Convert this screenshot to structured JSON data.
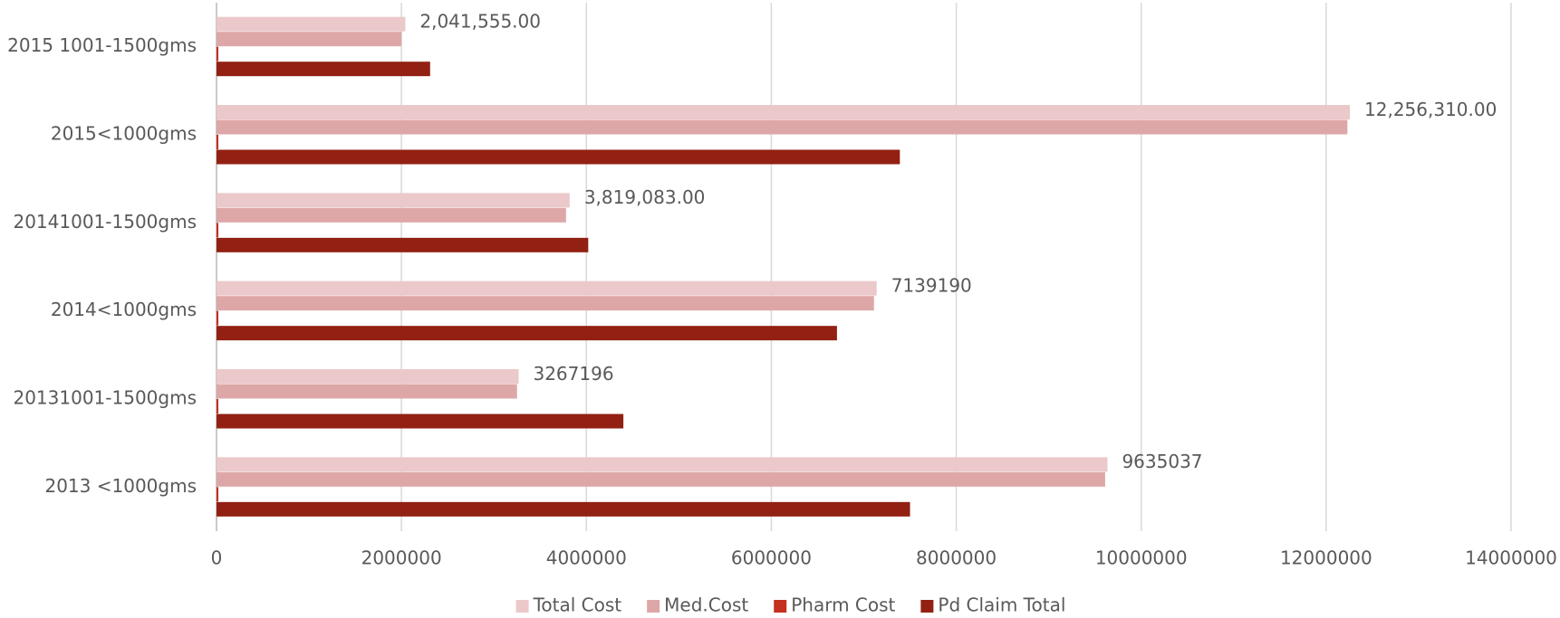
{
  "chart_data": {
    "type": "barh",
    "categories": [
      "2015 1001-1500gms",
      "2015<1000gms",
      "20141001-1500gms",
      "2014<1000gms",
      "20131001-1500gms",
      "2013 <1000gms"
    ],
    "series": [
      {
        "name": "Total Cost",
        "color": "#ebc8c9",
        "values": [
          2041555,
          12256310,
          3819083,
          7139190,
          3267196,
          9635037
        ],
        "value_labels": [
          "2,041,555.00",
          "12,256,310.00",
          "3,819,083.00",
          "7139190",
          "3267196",
          "9635037"
        ]
      },
      {
        "name": "Med.Cost",
        "color": "#dea7a7",
        "values": [
          2000000,
          12230000,
          3780000,
          7110000,
          3250000,
          9610000
        ]
      },
      {
        "name": "Pharm Cost",
        "color": "#c4311f",
        "values": [
          20000,
          20000,
          20000,
          20000,
          20000,
          20000
        ]
      },
      {
        "name": "Pd Claim Total",
        "color": "#922113",
        "values": [
          2310000,
          7390000,
          4020000,
          6710000,
          4400000,
          7500000
        ]
      }
    ],
    "xlim": [
      0,
      14000000
    ],
    "xticks": [
      0,
      2000000,
      4000000,
      6000000,
      8000000,
      10000000,
      12000000,
      14000000
    ],
    "grid": true,
    "legend": "bottom"
  }
}
